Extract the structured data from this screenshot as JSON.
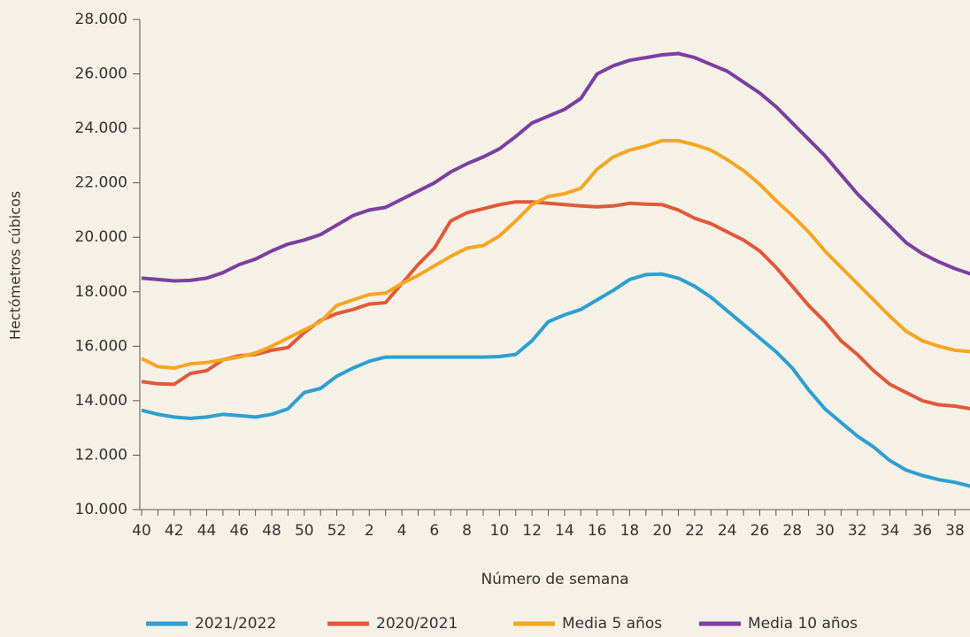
{
  "chart_data": {
    "type": "line",
    "x_label": "Número de semana",
    "y_label": "Hectómetros cúbicos",
    "categories": [
      "40",
      null,
      "42",
      null,
      "44",
      null,
      "46",
      null,
      "48",
      null,
      "50",
      null,
      "52",
      null,
      "2",
      null,
      "4",
      null,
      "6",
      null,
      "8",
      null,
      "10",
      null,
      "12",
      null,
      "14",
      null,
      "16",
      null,
      "18",
      null,
      "20",
      null,
      "22",
      null,
      "24",
      null,
      "26",
      null,
      "28",
      null,
      "30",
      null,
      "32",
      null,
      "34",
      null,
      "36",
      null,
      "38",
      null
    ],
    "series": [
      {
        "name": "2021/2022",
        "color": "#2e9fd0",
        "values": [
          13650,
          13500,
          13400,
          13350,
          13400,
          13500,
          13450,
          13400,
          13500,
          13700,
          14300,
          14450,
          14900,
          15200,
          15450,
          15600,
          15600,
          15600,
          15600,
          15600,
          15600,
          15600,
          15620,
          15700,
          16200,
          16900,
          17150,
          17350,
          17700,
          18050,
          18450,
          18630,
          18650,
          18500,
          18200,
          17800,
          17300,
          16800,
          16300,
          15800,
          15200,
          14400,
          13700,
          13200,
          12700,
          12300,
          11800,
          11450,
          11250,
          11100,
          11000,
          10850
        ]
      },
      {
        "name": "2020/2021",
        "color": "#e05a3a",
        "values": [
          14700,
          14620,
          14600,
          15000,
          15100,
          15500,
          15650,
          15700,
          15850,
          15950,
          16500,
          16950,
          17200,
          17350,
          17550,
          17600,
          18300,
          19000,
          19600,
          20600,
          20900,
          21050,
          21200,
          21300,
          21300,
          21250,
          21200,
          21150,
          21120,
          21150,
          21250,
          21220,
          21200,
          21000,
          20700,
          20500,
          20200,
          19900,
          19500,
          18900,
          18200,
          17500,
          16900,
          16200,
          15700,
          15100,
          14600,
          14300,
          14000,
          13850,
          13800,
          13700
        ]
      },
      {
        "name": "Media 5 años",
        "color": "#f5a623",
        "values": [
          15550,
          15250,
          15200,
          15350,
          15400,
          15500,
          15600,
          15750,
          16000,
          16300,
          16600,
          16900,
          17500,
          17700,
          17900,
          17950,
          18300,
          18600,
          18950,
          19300,
          19600,
          19700,
          20050,
          20600,
          21200,
          21500,
          21600,
          21800,
          22500,
          22950,
          23200,
          23350,
          23550,
          23550,
          23400,
          23200,
          22850,
          22450,
          21950,
          21350,
          20800,
          20200,
          19500,
          18900,
          18300,
          17700,
          17100,
          16550,
          16200,
          16000,
          15850,
          15800
        ]
      },
      {
        "name": "Media 10 años",
        "color": "#7b3fa0",
        "values": [
          18500,
          18450,
          18400,
          18420,
          18500,
          18700,
          19000,
          19200,
          19500,
          19750,
          19900,
          20100,
          20450,
          20800,
          21000,
          21100,
          21400,
          21700,
          22000,
          22400,
          22700,
          22950,
          23250,
          23700,
          24200,
          24450,
          24700,
          25100,
          26000,
          26300,
          26500,
          26600,
          26700,
          26750,
          26600,
          26350,
          26100,
          25700,
          25300,
          24800,
          24200,
          23600,
          23000,
          22300,
          21600,
          21000,
          20400,
          19800,
          19400,
          19100,
          18850,
          18650
        ]
      }
    ],
    "ylim": [
      10000,
      28000
    ],
    "yticks": [
      {
        "value": 10000,
        "label": "10.000"
      },
      {
        "value": 12000,
        "label": "12.000"
      },
      {
        "value": 14000,
        "label": "14.000"
      },
      {
        "value": 16000,
        "label": "16.000"
      },
      {
        "value": 18000,
        "label": "18.000"
      },
      {
        "value": 20000,
        "label": "20.000"
      },
      {
        "value": 22000,
        "label": "22.000"
      },
      {
        "value": 24000,
        "label": "24.000"
      },
      {
        "value": 26000,
        "label": "26.000"
      },
      {
        "value": 28000,
        "label": "28.000"
      }
    ],
    "legend": "bottom"
  }
}
